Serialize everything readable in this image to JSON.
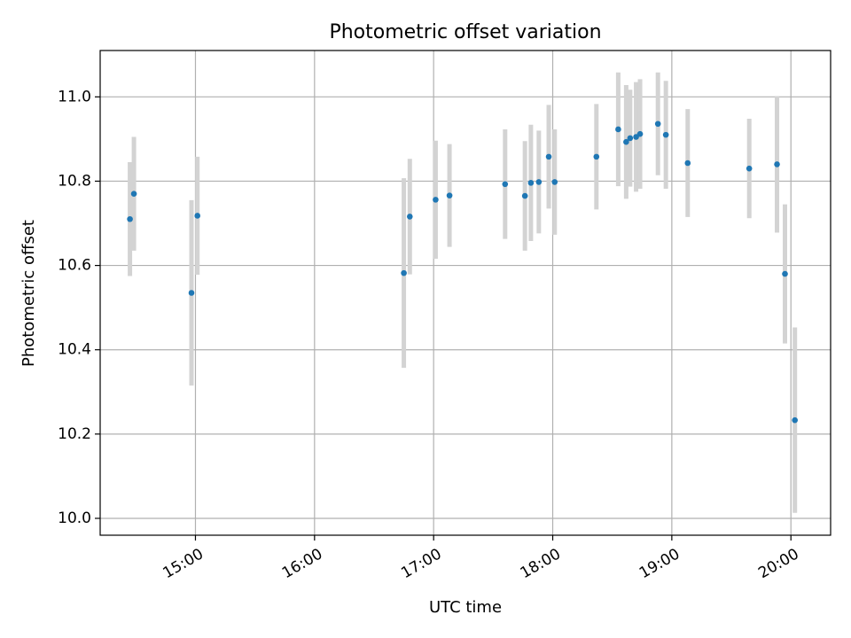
{
  "chart_data": {
    "type": "scatter",
    "title": "Photometric offset variation",
    "xlabel": "UTC time",
    "ylabel": "Photometric offset",
    "x_axis_type": "time",
    "xlim": [
      "14:12",
      "20:20"
    ],
    "ylim": [
      9.96,
      11.11
    ],
    "x_ticks": [
      "15:00",
      "16:00",
      "17:00",
      "18:00",
      "19:00",
      "20:00"
    ],
    "y_ticks": [
      10.0,
      10.2,
      10.4,
      10.6,
      10.8,
      11.0
    ],
    "y_tick_labels": [
      "10.0",
      "10.2",
      "10.4",
      "10.6",
      "10.8",
      "11.0"
    ],
    "grid": true,
    "legend": "none",
    "marker_color": "#1f77b4",
    "errorbar_color": "#d3d3d3",
    "points": [
      {
        "t": "14:27",
        "y": 10.71,
        "err": 0.135
      },
      {
        "t": "14:29",
        "y": 10.77,
        "err": 0.135
      },
      {
        "t": "14:58",
        "y": 10.535,
        "err": 0.22
      },
      {
        "t": "15:01",
        "y": 10.718,
        "err": 0.14
      },
      {
        "t": "16:45",
        "y": 10.582,
        "err": 0.225
      },
      {
        "t": "16:48",
        "y": 10.716,
        "err": 0.137
      },
      {
        "t": "17:01",
        "y": 10.756,
        "err": 0.14
      },
      {
        "t": "17:08",
        "y": 10.766,
        "err": 0.122
      },
      {
        "t": "17:36",
        "y": 10.793,
        "err": 0.13
      },
      {
        "t": "17:46",
        "y": 10.765,
        "err": 0.13
      },
      {
        "t": "17:49",
        "y": 10.796,
        "err": 0.138
      },
      {
        "t": "17:53",
        "y": 10.798,
        "err": 0.122
      },
      {
        "t": "17:58",
        "y": 10.858,
        "err": 0.123
      },
      {
        "t": "18:01",
        "y": 10.798,
        "err": 0.125
      },
      {
        "t": "18:22",
        "y": 10.858,
        "err": 0.125
      },
      {
        "t": "18:33",
        "y": 10.923,
        "err": 0.135
      },
      {
        "t": "18:37",
        "y": 10.893,
        "err": 0.135
      },
      {
        "t": "18:39",
        "y": 10.902,
        "err": 0.115
      },
      {
        "t": "18:42",
        "y": 10.905,
        "err": 0.13
      },
      {
        "t": "18:44",
        "y": 10.912,
        "err": 0.13
      },
      {
        "t": "18:53",
        "y": 10.936,
        "err": 0.122
      },
      {
        "t": "18:57",
        "y": 10.91,
        "err": 0.128
      },
      {
        "t": "19:08",
        "y": 10.843,
        "err": 0.128
      },
      {
        "t": "19:39",
        "y": 10.83,
        "err": 0.118
      },
      {
        "t": "19:53",
        "y": 10.84,
        "err": 0.162
      },
      {
        "t": "19:57",
        "y": 10.58,
        "err": 0.165
      },
      {
        "t": "20:02",
        "y": 10.233,
        "err": 0.22
      }
    ]
  }
}
